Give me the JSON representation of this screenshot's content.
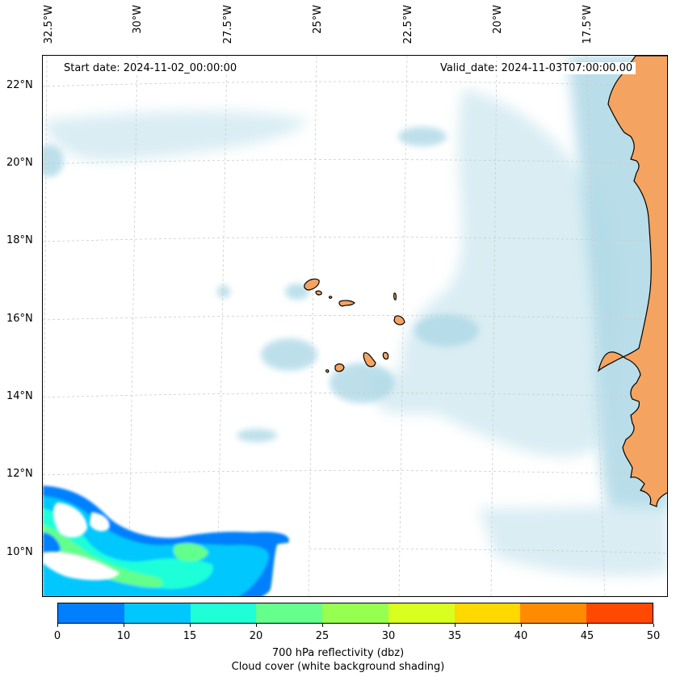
{
  "header": {
    "start_date": "Start date: 2024-11-02_00:00:00",
    "valid_date": "Valid_date: 2024-11-03T07:00:00.00"
  },
  "axes": {
    "longitude_labels": [
      "32.5°W",
      "30°W",
      "27.5°W",
      "25°W",
      "22.5°W",
      "20°W",
      "17.5°W"
    ],
    "latitude_labels": [
      "22°N",
      "20°N",
      "18°N",
      "16°N",
      "14°N",
      "12°N",
      "10°N"
    ]
  },
  "colorbar": {
    "tick_labels": [
      "0",
      "10",
      "15",
      "20",
      "25",
      "30",
      "35",
      "40",
      "45",
      "50"
    ],
    "colors": [
      "#0080ff",
      "#00c8ff",
      "#1effd8",
      "#64ff8c",
      "#96ff50",
      "#d8ff1e",
      "#ffd800",
      "#ff8c00",
      "#ff4800"
    ],
    "title_line1": "700 hPa reflectivity (dbz)",
    "title_line2": "Cloud cover (white background shading)"
  },
  "map_colors": {
    "land": "#f4a460",
    "cloud": "#add8e6",
    "coastline": "#000000",
    "gridline": "#cccccc"
  }
}
